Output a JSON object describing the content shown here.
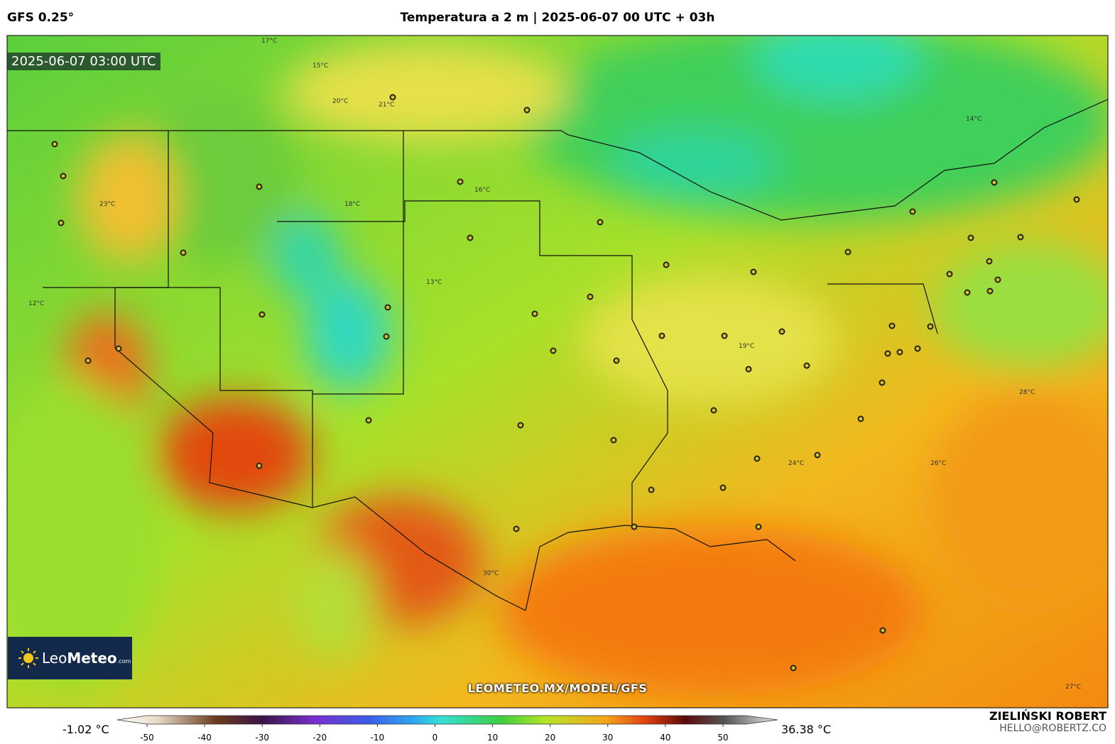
{
  "header": {
    "model": "GFS 0.25°",
    "title": "Temperatura a 2 m | 2025-06-07 00 UTC + 03h"
  },
  "map": {
    "valid_time": "2025-06-07 03:00 UTC",
    "watermark": "LEOMETEO.MX/MODEL/GFS",
    "logo": {
      "name": "Leo",
      "name_bold": "Meteo",
      "suffix": ".com"
    },
    "contour_labels": [
      "17°C",
      "15°C",
      "20°C",
      "21°C",
      "18°C",
      "13°C",
      "14°C",
      "16°C",
      "12°C",
      "24°C",
      "26°C",
      "28°C",
      "27°C",
      "30°C",
      "19°C",
      "23°C"
    ]
  },
  "colorbar": {
    "min_label": "-1.02 °C",
    "max_label": "36.38 °C",
    "ticks": [
      -50,
      -40,
      -30,
      -20,
      -10,
      0,
      10,
      20,
      30,
      40,
      50
    ]
  },
  "credit": {
    "author": "ZIELIŃSKI ROBERT",
    "email": "HELLO@ROBERTZ.CO"
  }
}
